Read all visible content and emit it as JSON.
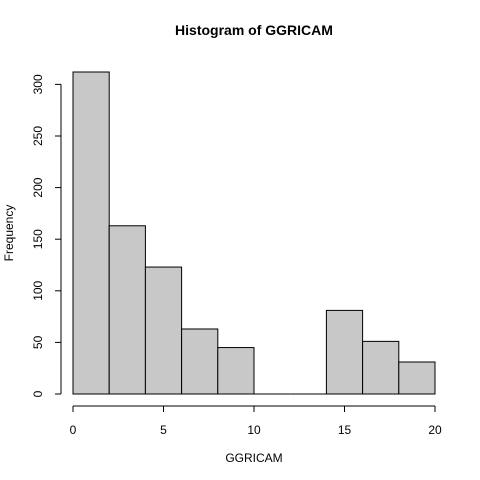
{
  "chart_data": {
    "type": "bar",
    "title": "Histogram of GGRICAM",
    "xlabel": "GGRICAM",
    "ylabel": "Frequency",
    "bin_edges": [
      0,
      2,
      4,
      6,
      8,
      10,
      12,
      14,
      16,
      18,
      20
    ],
    "values": [
      312,
      163,
      123,
      63,
      45,
      0,
      0,
      81,
      51,
      31
    ],
    "xlim": [
      0,
      20
    ],
    "ylim": [
      0,
      312
    ],
    "x_ticks": [
      0,
      5,
      10,
      15,
      20
    ],
    "y_ticks": [
      0,
      50,
      100,
      150,
      200,
      250,
      300
    ],
    "bar_color": "#c8c8c8",
    "bar_edge_color": "#000000",
    "grid": false
  }
}
